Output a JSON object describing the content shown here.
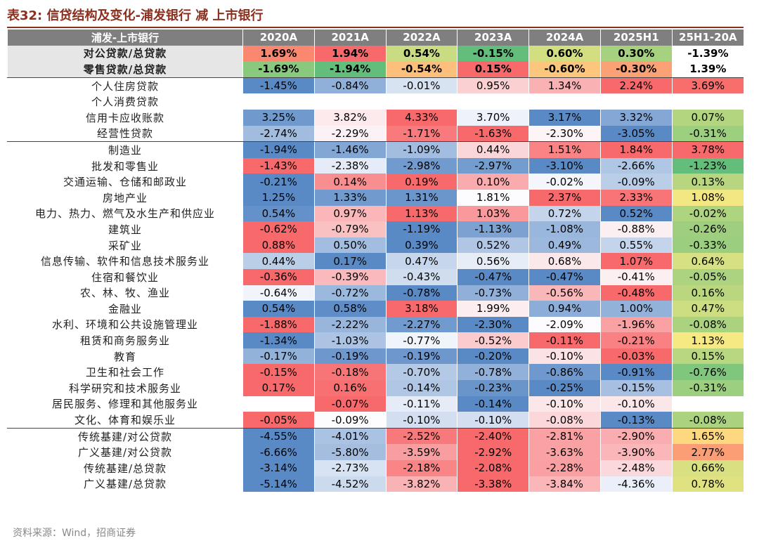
{
  "title": "表32: 信贷结构及变化-浦发银行 减 上市银行",
  "table": {
    "header": [
      "浦发-上市银行",
      "2020A",
      "2021A",
      "2022A",
      "2023A",
      "2024A",
      "2025H1",
      "25H1-20A"
    ],
    "rows": [
      {
        "label": "对公贷款/总贷款",
        "cells": [
          "1.69%",
          "1.94%",
          "0.54%",
          "-0.15%",
          "0.60%",
          "0.30%",
          "-1.39%"
        ]
      },
      {
        "label": "零售贷款/总贷款",
        "cells": [
          "-1.69%",
          "-1.94%",
          "-0.54%",
          "0.15%",
          "-0.60%",
          "-0.30%",
          "1.39%"
        ]
      },
      {
        "label": "个人住房贷款",
        "cells": [
          "-1.45%",
          "-0.84%",
          "-0.01%",
          "0.95%",
          "1.34%",
          "2.24%",
          "3.69%"
        ]
      },
      {
        "label": "个人消费贷款",
        "cells": [
          null,
          null,
          null,
          null,
          null,
          null,
          null
        ]
      },
      {
        "label": "信用卡应收账款",
        "cells": [
          "3.25%",
          "3.82%",
          "4.33%",
          "3.70%",
          "3.17%",
          "3.32%",
          "0.07%"
        ]
      },
      {
        "label": "经营性贷款",
        "cells": [
          "-2.74%",
          "-2.29%",
          "-1.71%",
          "-1.63%",
          "-2.30%",
          "-3.05%",
          "-0.31%"
        ]
      },
      {
        "label": "制造业",
        "cells": [
          "-1.94%",
          "-1.46%",
          "-1.09%",
          "0.44%",
          "1.51%",
          "1.84%",
          "3.78%"
        ]
      },
      {
        "label": "批发和零售业",
        "cells": [
          "-1.43%",
          "-2.38%",
          "-2.98%",
          "-2.97%",
          "-3.10%",
          "-2.66%",
          "-1.23%"
        ]
      },
      {
        "label": "交通运输、仓储和邮政业",
        "cells": [
          "-0.21%",
          "0.14%",
          "0.19%",
          "0.10%",
          "-0.02%",
          "-0.09%",
          "0.13%"
        ]
      },
      {
        "label": "房地产业",
        "cells": [
          "1.25%",
          "1.33%",
          "1.31%",
          "1.81%",
          "2.37%",
          "2.33%",
          "1.08%"
        ]
      },
      {
        "label": "电力、热力、燃气及水生产和供应业",
        "cells": [
          "0.54%",
          "0.97%",
          "1.13%",
          "1.03%",
          "0.72%",
          "0.52%",
          "-0.02%"
        ]
      },
      {
        "label": "建筑业",
        "cells": [
          "-0.62%",
          "-0.79%",
          "-1.19%",
          "-1.13%",
          "-1.08%",
          "-0.88%",
          "-0.26%"
        ]
      },
      {
        "label": "采矿业",
        "cells": [
          "0.88%",
          "0.50%",
          "0.39%",
          "0.52%",
          "0.49%",
          "0.55%",
          "-0.33%"
        ]
      },
      {
        "label": "信息传输、软件和信息技术服务业",
        "cells": [
          "0.44%",
          "0.17%",
          "0.47%",
          "0.56%",
          "0.68%",
          "1.07%",
          "0.64%"
        ]
      },
      {
        "label": "住宿和餐饮业",
        "cells": [
          "-0.36%",
          "-0.39%",
          "-0.43%",
          "-0.47%",
          "-0.47%",
          "-0.41%",
          "-0.05%"
        ]
      },
      {
        "label": "农、林、牧、渔业",
        "cells": [
          "-0.64%",
          "-0.72%",
          "-0.78%",
          "-0.73%",
          "-0.56%",
          "-0.48%",
          "0.16%"
        ]
      },
      {
        "label": "金融业",
        "cells": [
          "0.54%",
          "0.58%",
          "3.18%",
          "1.99%",
          "0.94%",
          "1.00%",
          "0.47%"
        ]
      },
      {
        "label": "水利、环境和公共设施管理业",
        "cells": [
          "-1.88%",
          "-2.22%",
          "-2.27%",
          "-2.30%",
          "-2.09%",
          "-1.96%",
          "-0.08%"
        ]
      },
      {
        "label": "租赁和商务服务业",
        "cells": [
          "-1.34%",
          "-1.03%",
          "-0.77%",
          "-0.52%",
          "-0.11%",
          "-0.21%",
          "1.13%"
        ]
      },
      {
        "label": "教育",
        "cells": [
          "-0.17%",
          "-0.19%",
          "-0.19%",
          "-0.20%",
          "-0.10%",
          "-0.03%",
          "0.15%"
        ]
      },
      {
        "label": "卫生和社会工作",
        "cells": [
          "-0.15%",
          "-0.18%",
          "-0.70%",
          "-0.78%",
          "-0.86%",
          "-0.91%",
          "-0.76%"
        ]
      },
      {
        "label": "科学研究和技术服务业",
        "cells": [
          "0.17%",
          "0.16%",
          "-0.14%",
          "-0.23%",
          "-0.25%",
          "-0.15%",
          "-0.31%"
        ]
      },
      {
        "label": "居民服务、修理和其他服务业",
        "cells": [
          null,
          "-0.07%",
          "-0.11%",
          "-0.14%",
          "-0.10%",
          "-0.10%",
          null
        ]
      },
      {
        "label": "文化、体育和娱乐业",
        "cells": [
          "-0.05%",
          "-0.09%",
          "-0.10%",
          "-0.10%",
          "-0.08%",
          "-0.13%",
          "-0.08%"
        ]
      },
      {
        "label": "传统基建/对公贷款",
        "cells": [
          "-4.55%",
          "-4.01%",
          "-2.52%",
          "-2.40%",
          "-2.81%",
          "-2.90%",
          "1.65%"
        ]
      },
      {
        "label": "广义基建/对公贷款",
        "cells": [
          "-6.66%",
          "-5.80%",
          "-3.59%",
          "-2.92%",
          "-3.63%",
          "-3.90%",
          "2.77%"
        ]
      },
      {
        "label": "传统基建/总贷款",
        "cells": [
          "-3.14%",
          "-2.73%",
          "-2.18%",
          "-2.08%",
          "-2.28%",
          "-2.48%",
          "0.66%"
        ]
      },
      {
        "label": "广义基建/总贷款",
        "cells": [
          "-5.14%",
          "-4.52%",
          "-3.82%",
          "-3.38%",
          "-3.84%",
          "-4.36%",
          "0.78%"
        ]
      }
    ]
  },
  "source": "资料来源：Wind，招商证券"
}
